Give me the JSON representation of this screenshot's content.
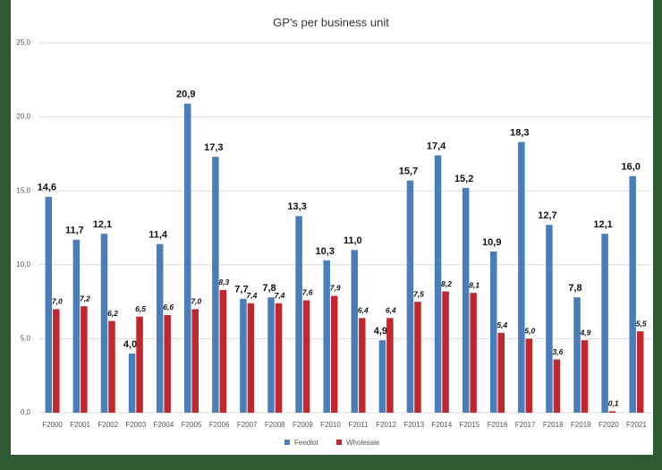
{
  "chart_data": {
    "type": "bar",
    "title": "GP's per business unit",
    "categories": [
      "F2000",
      "F2001",
      "F2002",
      "F2003",
      "F2004",
      "F2005",
      "F2006",
      "F2007",
      "F2008",
      "F2009",
      "F2010",
      "F2011",
      "F2012",
      "F2013",
      "F2014",
      "F2015",
      "F2016",
      "F2017",
      "F2018",
      "F2019",
      "F2020",
      "F2021"
    ],
    "series": [
      {
        "name": "Feedlot",
        "color": "#4a7ebb",
        "values": [
          14.6,
          11.7,
          12.1,
          4.0,
          11.4,
          20.9,
          17.3,
          7.7,
          7.8,
          13.3,
          10.3,
          11.0,
          4.9,
          15.7,
          17.4,
          15.2,
          10.9,
          18.3,
          12.7,
          7.8,
          12.1,
          16.0
        ],
        "value_labels": [
          "14,6",
          "11,7",
          "12,1",
          "4,0",
          "11,4",
          "20,9",
          "17,3",
          "7,7",
          "7,8",
          "13,3",
          "10,3",
          "11,0",
          "4,9",
          "15,7",
          "17,4",
          "15,2",
          "10,9",
          "18,3",
          "12,7",
          "7,8",
          "12,1",
          "16,0"
        ]
      },
      {
        "name": "Wholesale",
        "color": "#c0282d",
        "values": [
          7.0,
          7.2,
          6.2,
          6.5,
          6.6,
          7.0,
          8.3,
          7.4,
          7.4,
          7.6,
          7.9,
          6.4,
          6.4,
          7.5,
          8.2,
          8.1,
          5.4,
          5.0,
          3.6,
          4.9,
          0.1,
          5.5
        ],
        "value_labels": [
          "7,0",
          "7,2",
          "6,2",
          "6,5",
          "6,6",
          "7,0",
          "8,3",
          "7,4",
          "7,4",
          "7,6",
          "7,9",
          "6,4",
          "6,4",
          "7,5",
          "8,2",
          "8,1",
          "5,4",
          "5,0",
          "3,6",
          "4,9",
          "0,1",
          "5,5"
        ]
      }
    ],
    "ylim": [
      0,
      25
    ],
    "yticks": [
      {
        "value": 0,
        "label": "0,0"
      },
      {
        "value": 5,
        "label": "5,0"
      },
      {
        "value": 10,
        "label": "10,0"
      },
      {
        "value": 15,
        "label": "15,0"
      },
      {
        "value": 20,
        "label": "20,0"
      },
      {
        "value": 25,
        "label": "25,0"
      }
    ],
    "grid": true
  }
}
